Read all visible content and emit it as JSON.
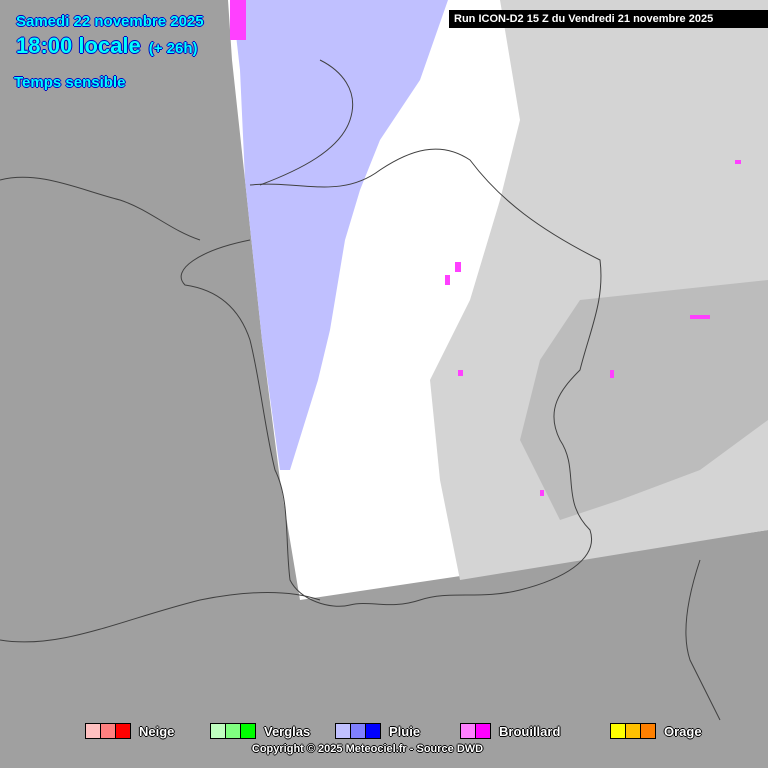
{
  "header": {
    "date": "Samedi 22 novembre 2025",
    "time": "18:00 locale",
    "offset": "(+ 26h)",
    "parameter": "Temps sensible"
  },
  "run_label": "Run ICON-D2 15 Z du Vendredi 21 novembre 2025",
  "legend": [
    {
      "label": "Neige",
      "colors": [
        "#ffc0c0",
        "#ff8080",
        "#ff0000"
      ]
    },
    {
      "label": "Verglas",
      "colors": [
        "#c0ffc0",
        "#80ff80",
        "#00ff00"
      ]
    },
    {
      "label": "Pluie",
      "colors": [
        "#c0c0ff",
        "#8080ff",
        "#0000ff"
      ]
    },
    {
      "label": "Brouillard",
      "colors": [
        "#ff80ff",
        "#ff00ff"
      ]
    },
    {
      "label": "Orage",
      "colors": [
        "#ffff00",
        "#ffc000",
        "#ff8000"
      ]
    }
  ],
  "copyright": "Copyright © 2025 Meteociel.fr - Source DWD",
  "colors": {
    "outside_domain": "#a0a0a0",
    "no_weather": "#ffffff",
    "cloud": "#d0d0d0",
    "rain_light": "#c0c0ff",
    "fog": "#ff80ff"
  }
}
